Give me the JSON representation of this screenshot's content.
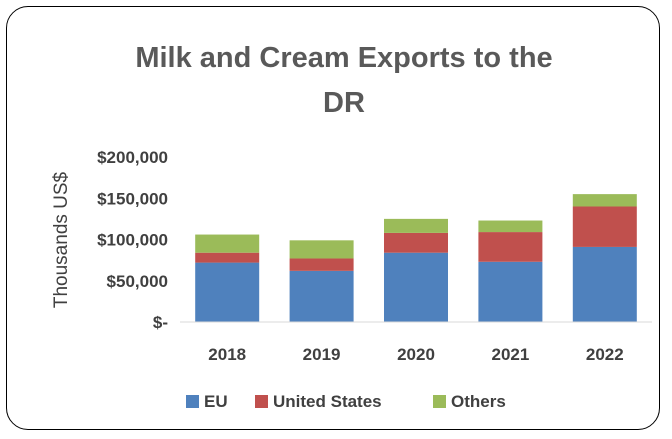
{
  "chart_data": {
    "type": "bar",
    "stacked": true,
    "title_lines": [
      "Milk and Cream Exports to the",
      "DR"
    ],
    "ylabel": "Thousands US$",
    "xlabel": "",
    "categories": [
      "2018",
      "2019",
      "2020",
      "2021",
      "2022"
    ],
    "ylim": [
      0,
      200000
    ],
    "yticks": [
      0,
      50000,
      100000,
      150000,
      200000
    ],
    "ytick_labels": [
      "$-",
      "$50,000",
      "$100,000",
      "$150,000",
      "$200,000"
    ],
    "grid": false,
    "legend_position": "bottom",
    "series": [
      {
        "name": "EU",
        "color": "#4f81bd",
        "values": [
          72000,
          62000,
          84000,
          73000,
          91000
        ]
      },
      {
        "name": "United States",
        "color": "#c0504d",
        "values": [
          12000,
          15000,
          24000,
          36000,
          49000
        ]
      },
      {
        "name": "Others",
        "color": "#9bbb59",
        "values": [
          22000,
          22000,
          17000,
          14000,
          15000
        ]
      }
    ]
  }
}
